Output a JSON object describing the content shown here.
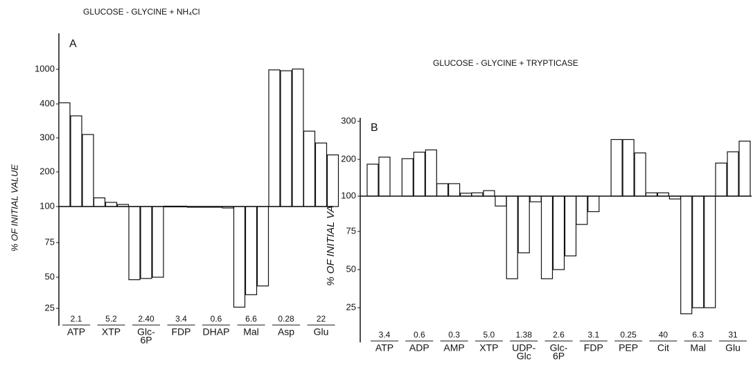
{
  "chart_data": [
    {
      "type": "bar",
      "panel": "A",
      "title": "GLUCOSE - GLYCINE + NH₄Cl",
      "y_label": "% OF INITIAL VALUE",
      "baseline": 100,
      "categories": [
        [
          "ATP"
        ],
        [
          "XTP"
        ],
        [
          "Glc-",
          "6P"
        ],
        [
          "FDP"
        ],
        [
          "DHAP"
        ],
        [
          "Mal"
        ],
        [
          "Asp"
        ],
        [
          "Glu"
        ]
      ],
      "initial_values": [
        "2.1",
        "5.2",
        "2.40",
        "3.4",
        "0.6",
        "6.6",
        "0.28",
        "22"
      ],
      "color": "#ffffff",
      "series": [
        {
          "values": [
            420,
            125,
            48,
            101,
            100,
            26,
            990,
            320
          ]
        },
        {
          "values": [
            365,
            112,
            49,
            101,
            100,
            36,
            975,
            285
          ]
        },
        {
          "values": [
            310,
            106,
            50,
            100,
            99,
            43,
            1005,
            250
          ]
        }
      ],
      "ylim": [
        25,
        1000
      ],
      "yticks": [
        25,
        50,
        75,
        100,
        200,
        300,
        400,
        1000
      ]
    },
    {
      "type": "bar",
      "panel": "B",
      "title": "GLUCOSE - GLYCINE + TRYPTICASE",
      "y_label": "% OF INITIAL VALUE",
      "baseline": 100,
      "categories": [
        [
          "ATP"
        ],
        [
          "ADP"
        ],
        [
          "AMP"
        ],
        [
          "XTP"
        ],
        [
          "UDP-",
          "Glc"
        ],
        [
          "Glc-",
          "6P"
        ],
        [
          "FDP"
        ],
        [
          "PEP"
        ],
        [
          "Cit"
        ],
        [
          "Mal"
        ],
        [
          "Glu"
        ]
      ],
      "initial_values": [
        "3.4",
        "0.6",
        "0.3",
        "5.0",
        "1.38",
        "2.6",
        "3.1",
        "0.25",
        "40",
        "6.3",
        "31"
      ],
      "color": "#ffffff",
      "series": [
        {
          "values": [
            187,
            202,
            134,
            109,
            44,
            44,
            80,
            252,
            109,
            21,
            190
          ]
        },
        {
          "values": [
            206,
            219,
            134,
            115,
            61,
            50,
            89,
            252,
            109,
            25,
            220
          ]
        },
        {
          "values": [
            null,
            225,
            108,
            93,
            96,
            59,
            null,
            217,
            98,
            25,
            248
          ]
        }
      ],
      "ylim": [
        25,
        300
      ],
      "yticks": [
        25,
        50,
        75,
        100,
        200,
        300
      ]
    }
  ]
}
